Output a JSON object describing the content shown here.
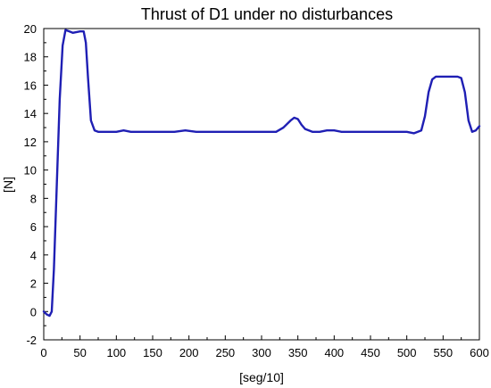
{
  "chart_data": {
    "type": "line",
    "title": "Thrust of D1 under no disturbances",
    "xlabel": "[seg/10]",
    "ylabel": "[N]",
    "xlim": [
      0,
      600
    ],
    "ylim": [
      -2,
      20
    ],
    "xticks": [
      0,
      50,
      100,
      150,
      200,
      250,
      300,
      350,
      400,
      450,
      500,
      550,
      600
    ],
    "yticks": [
      -2,
      0,
      2,
      4,
      6,
      8,
      10,
      12,
      14,
      16,
      18,
      20
    ],
    "grid": false,
    "line_color": "#1f1fb4",
    "series": [
      {
        "x": [
          0,
          4,
          8,
          11,
          14,
          18,
          22,
          26,
          30,
          35,
          40,
          50,
          55,
          58,
          61,
          65,
          70,
          75,
          85,
          100,
          110,
          120,
          150,
          180,
          195,
          210,
          230,
          300,
          320,
          330,
          340,
          345,
          350,
          355,
          360,
          370,
          380,
          390,
          400,
          410,
          420,
          450,
          500,
          510,
          520,
          525,
          530,
          535,
          540,
          560,
          570,
          575,
          580,
          585,
          590,
          595,
          600
        ],
        "y": [
          0.0,
          -0.2,
          -0.3,
          0.0,
          3.0,
          9.0,
          15.0,
          18.8,
          19.9,
          19.8,
          19.7,
          19.8,
          19.8,
          19.0,
          16.5,
          13.5,
          12.8,
          12.7,
          12.7,
          12.7,
          12.8,
          12.7,
          12.7,
          12.7,
          12.8,
          12.7,
          12.7,
          12.7,
          12.7,
          13.0,
          13.5,
          13.7,
          13.6,
          13.2,
          12.9,
          12.7,
          12.7,
          12.8,
          12.8,
          12.7,
          12.7,
          12.7,
          12.7,
          12.6,
          12.8,
          13.8,
          15.5,
          16.4,
          16.6,
          16.6,
          16.6,
          16.5,
          15.5,
          13.5,
          12.7,
          12.8,
          13.1
        ]
      }
    ]
  }
}
